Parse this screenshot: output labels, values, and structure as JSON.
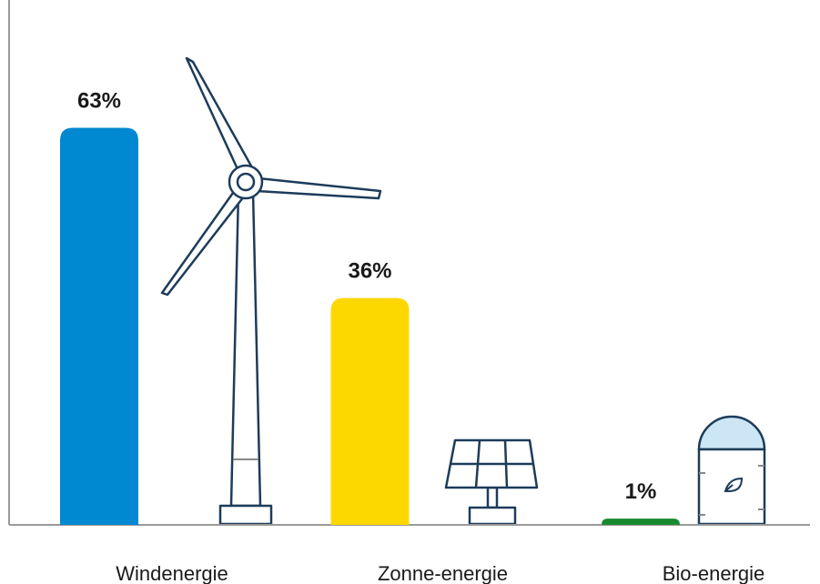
{
  "chart_data": {
    "type": "bar",
    "categories": [
      "Windenergie",
      "Zonne-energie",
      "Bio-energie"
    ],
    "values": [
      63,
      36,
      1
    ],
    "value_labels": [
      "63%",
      "36%",
      "1%"
    ],
    "colors": [
      "#0088d1",
      "#fdd800",
      "#1a8a2e"
    ],
    "ylim": [
      0,
      70
    ]
  }
}
